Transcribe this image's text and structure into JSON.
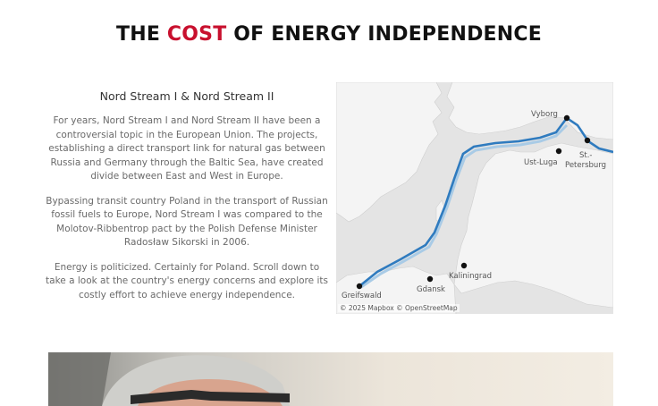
{
  "header": {
    "title_prefix": "THE ",
    "title_accent": "COST",
    "title_suffix": " OF ENERGY INDEPENDENCE",
    "accent_color": "#c8102e"
  },
  "intro": {
    "heading": "Nord Stream I & Nord Stream II",
    "paragraph1": "For years, Nord Stream I and Nord Stream II have been a controversial topic in the European Union. The projects, establishing a direct transport link for natural gas between Russia and Germany through the Baltic Sea, have created divide between East and West in Europe.",
    "paragraph2": "Bypassing transit country Poland in the transport of Russian fossil fuels to Europe, Nord Stream I was compared to the Molotov-Ribbentrop pact by the Polish Defense Minister Radosław Sikorski in 2006.",
    "paragraph3": "Energy is politicized. Certainly for Poland. Scroll down to take a look at the country's energy concerns and explore its costly effort to achieve energy independence."
  },
  "map": {
    "labels": {
      "vyborg": "Vyborg",
      "st_petersburg_1": "St.-",
      "st_petersburg_2": "Petersburg",
      "ust_luga": "Ust-Luga",
      "kaliningrad": "Kaliningrad",
      "gdansk": "Gdansk",
      "greifswald": "Greifswald"
    },
    "credit": "© 2025 Mapbox  © OpenStreetMap",
    "pipeline_color": "#2f7bbf",
    "pipeline_ii_color": "#a9cbe6"
  },
  "photo": {
    "subject": "portrait-photo"
  }
}
